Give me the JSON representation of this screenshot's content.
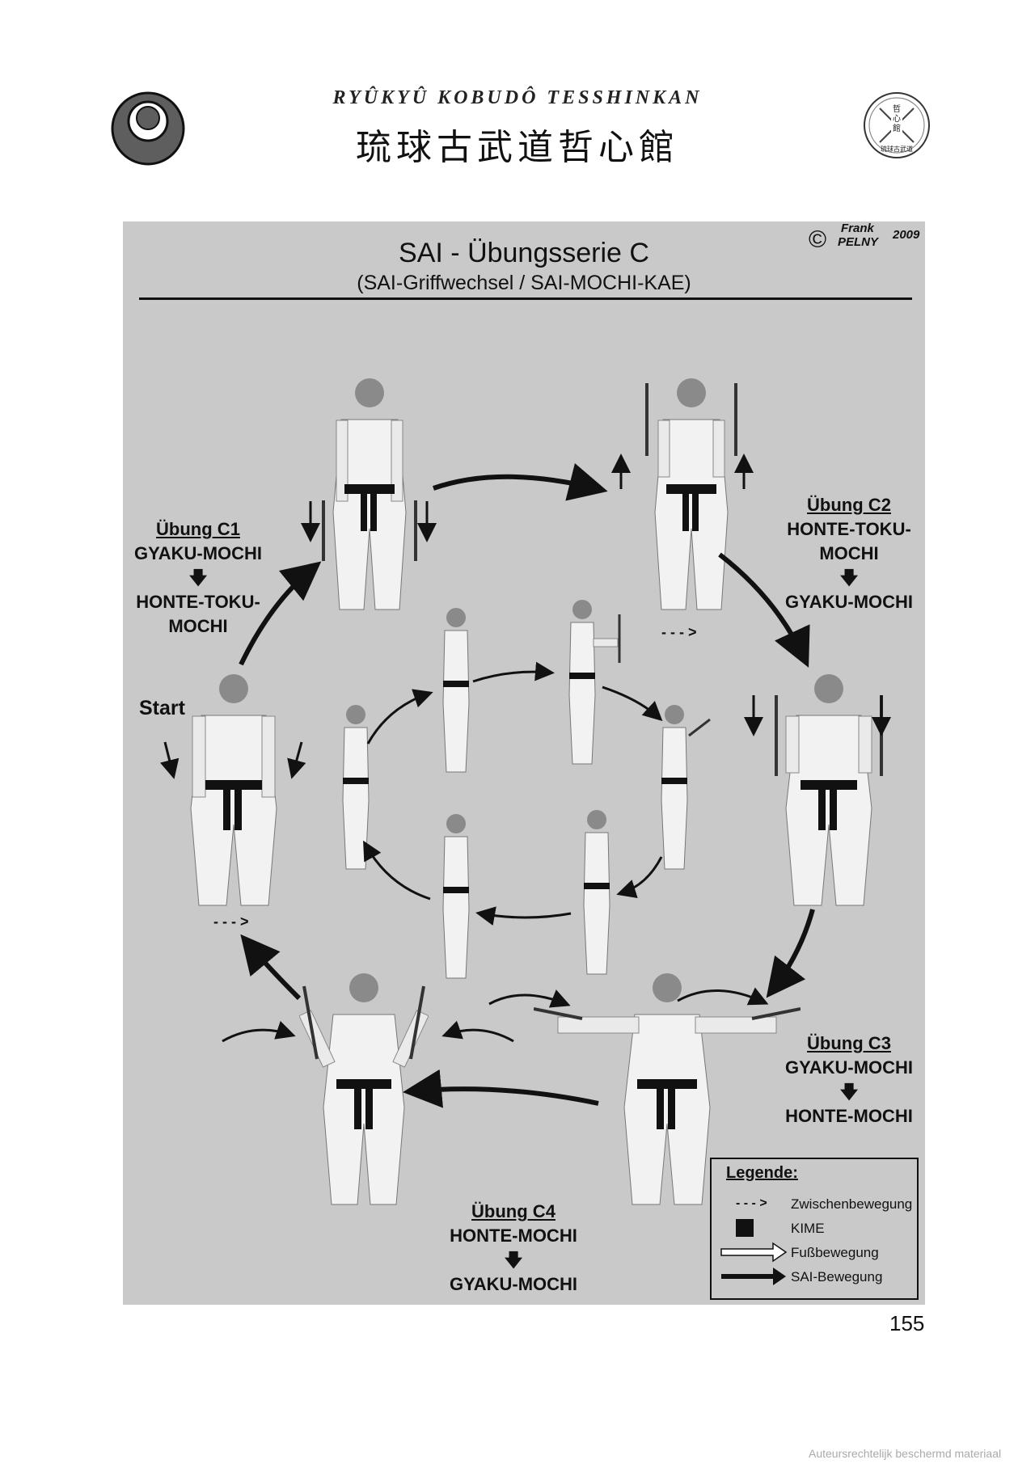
{
  "header": {
    "romaji": "RYÛKYÛ  KOBUDÔ  TESSHINKAN",
    "kanji": "琉球古武道哲心館"
  },
  "copyright": {
    "symbol": "©",
    "first": "Frank",
    "last": "PELNY",
    "year": "2009"
  },
  "panel": {
    "title": "SAI - Übungsserie C",
    "subtitle": "(SAI-Griffwechsel   /   SAI-MOCHI-KAE)"
  },
  "exercises": {
    "c1": {
      "heading": "Übung C1",
      "from": "GYAKU-MOCHI",
      "arrow": "🡇",
      "to_line1": "HONTE-TOKU-",
      "to_line2": "MOCHI"
    },
    "c2": {
      "heading": "Übung C2",
      "from_line1": "HONTE-TOKU-",
      "from_line2": "MOCHI",
      "arrow": "🡇",
      "to": "GYAKU-MOCHI"
    },
    "c3": {
      "heading": "Übung C3",
      "from": "GYAKU-MOCHI",
      "arrow": "🡇",
      "to": "HONTE-MOCHI"
    },
    "c4": {
      "heading": "Übung C4",
      "from": "HONTE-MOCHI",
      "arrow": "🡇",
      "to": "GYAKU-MOCHI"
    }
  },
  "start_label": "Start",
  "dashed_marker": "- - - >",
  "legend": {
    "title": "Legende:",
    "items": [
      {
        "symbol": "- - - >",
        "text": "Zwischenbewegung"
      },
      {
        "symbol": "square",
        "text": "KIME"
      },
      {
        "symbol": "hollow-arrow",
        "text": "Fußbewegung"
      },
      {
        "symbol": "solid-arrow",
        "text": "SAI-Bewegung"
      }
    ]
  },
  "page_number": "155",
  "watermark": "Auteursrechtelijk beschermd materiaal"
}
